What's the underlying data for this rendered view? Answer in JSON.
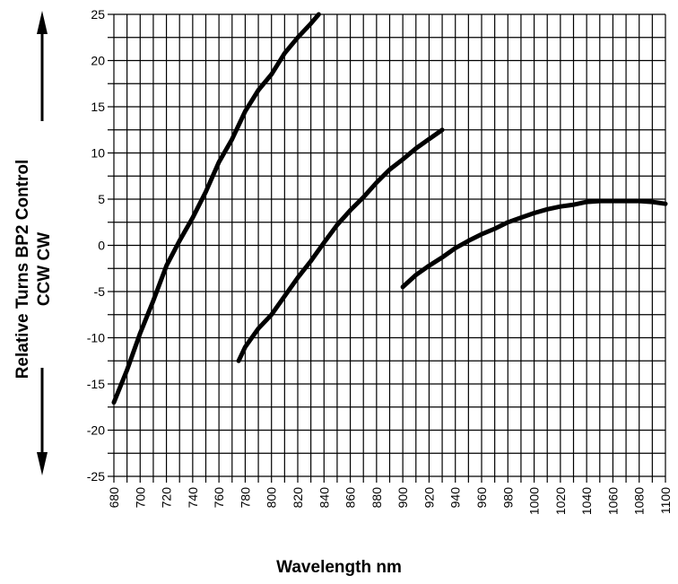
{
  "chart_data": {
    "type": "line",
    "title": "",
    "xlabel": "Wavelength nm",
    "ylabel_line1": "Relative Turns BP2 Control",
    "ylabel_line2": "CCW CW",
    "xlim": [
      680,
      1100
    ],
    "ylim": [
      -25,
      25
    ],
    "x_ticks": [
      680,
      700,
      720,
      740,
      760,
      780,
      800,
      820,
      840,
      860,
      880,
      900,
      920,
      940,
      960,
      980,
      1000,
      1020,
      1040,
      1060,
      1080,
      1100
    ],
    "y_ticks": [
      -25,
      -20,
      -15,
      -10,
      -5,
      0,
      5,
      10,
      15,
      20,
      25
    ],
    "grid": true,
    "line_color": "#000000",
    "series": [
      {
        "x": [
          680,
          690,
          700,
          710,
          720,
          730,
          740,
          750,
          760,
          770,
          780,
          790,
          800,
          810,
          820,
          830,
          836
        ],
        "y": [
          -17,
          -13.5,
          -9.5,
          -6,
          -2.2,
          0.5,
          3,
          5.8,
          9,
          11.5,
          14.5,
          16.8,
          18.5,
          20.8,
          22.5,
          24,
          25
        ]
      },
      {
        "x": [
          775,
          780,
          790,
          800,
          810,
          820,
          830,
          840,
          850,
          860,
          870,
          880,
          890,
          900,
          910,
          920,
          930
        ],
        "y": [
          -12.5,
          -11,
          -9,
          -7.5,
          -5.5,
          -3.5,
          -1.7,
          0.3,
          2.2,
          3.8,
          5.2,
          6.8,
          8.2,
          9.3,
          10.5,
          11.5,
          12.5
        ]
      },
      {
        "x": [
          900,
          910,
          920,
          930,
          940,
          950,
          960,
          970,
          980,
          990,
          1000,
          1010,
          1020,
          1030,
          1040,
          1050,
          1060,
          1070,
          1080,
          1090,
          1100
        ],
        "y": [
          -4.5,
          -3.2,
          -2.2,
          -1.3,
          -0.3,
          0.5,
          1.2,
          1.8,
          2.5,
          3.0,
          3.5,
          3.9,
          4.2,
          4.4,
          4.7,
          4.8,
          4.8,
          4.8,
          4.8,
          4.7,
          4.5
        ]
      }
    ]
  }
}
